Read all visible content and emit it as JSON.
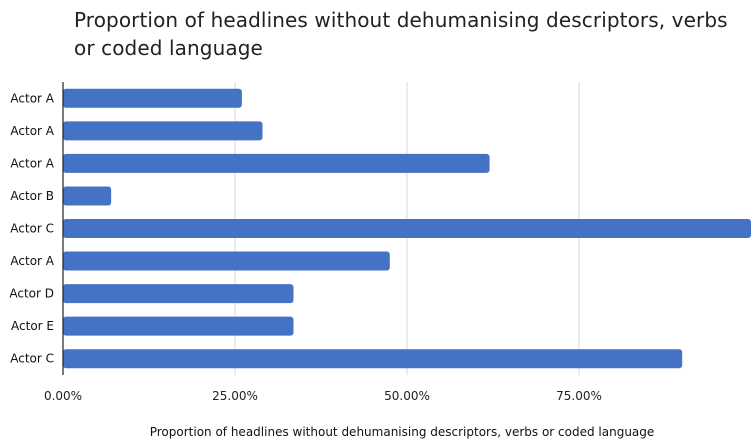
{
  "chart_data": {
    "type": "bar",
    "orientation": "horizontal",
    "title_lines": [
      "Proportion of headlines without dehumanising descriptors, verbs",
      "or coded language"
    ],
    "xlabel": "Proportion of headlines without dehumanising descriptors, verbs or coded language",
    "ylabel": "",
    "categories": [
      "Actor A",
      "Actor A",
      "Actor A",
      "Actor B",
      "Actor C",
      "Actor A",
      "Actor D",
      "Actor E",
      "Actor C"
    ],
    "values": [
      0.26,
      0.29,
      0.62,
      0.07,
      1.0,
      0.475,
      0.335,
      0.335,
      0.9
    ],
    "xlim": [
      0,
      1.0
    ],
    "x_ticks": [
      0,
      0.25,
      0.5,
      0.75
    ],
    "x_tick_labels": [
      "0.00%",
      "25.00%",
      "50.00%",
      "75.00%"
    ],
    "grid": "vertical",
    "legend": "none",
    "colors": {
      "bar": "#4472c4",
      "grid": "#d9d9d9",
      "axis": "#222222"
    }
  }
}
